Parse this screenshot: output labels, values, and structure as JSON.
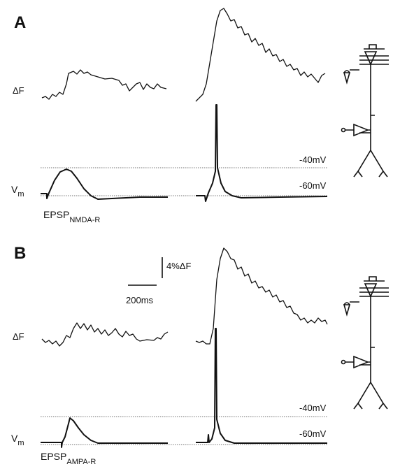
{
  "panels": [
    {
      "label": "A",
      "df_label": "ΔF",
      "vm_label": {
        "main": "V",
        "sub": "m"
      },
      "levels": [
        "-40mV",
        "-60mV"
      ],
      "epsp": {
        "main": "EPSP",
        "sub": "NMDA-R"
      }
    },
    {
      "label": "B",
      "df_label": "ΔF",
      "vm_label": {
        "main": "V",
        "sub": "m"
      },
      "levels": [
        "-40mV",
        "-60mV"
      ],
      "epsp": {
        "main": "EPSP",
        "sub": "AMPA-R"
      }
    }
  ],
  "scale_bar": {
    "vertical": "4%ΔF",
    "horizontal": "200ms"
  }
}
